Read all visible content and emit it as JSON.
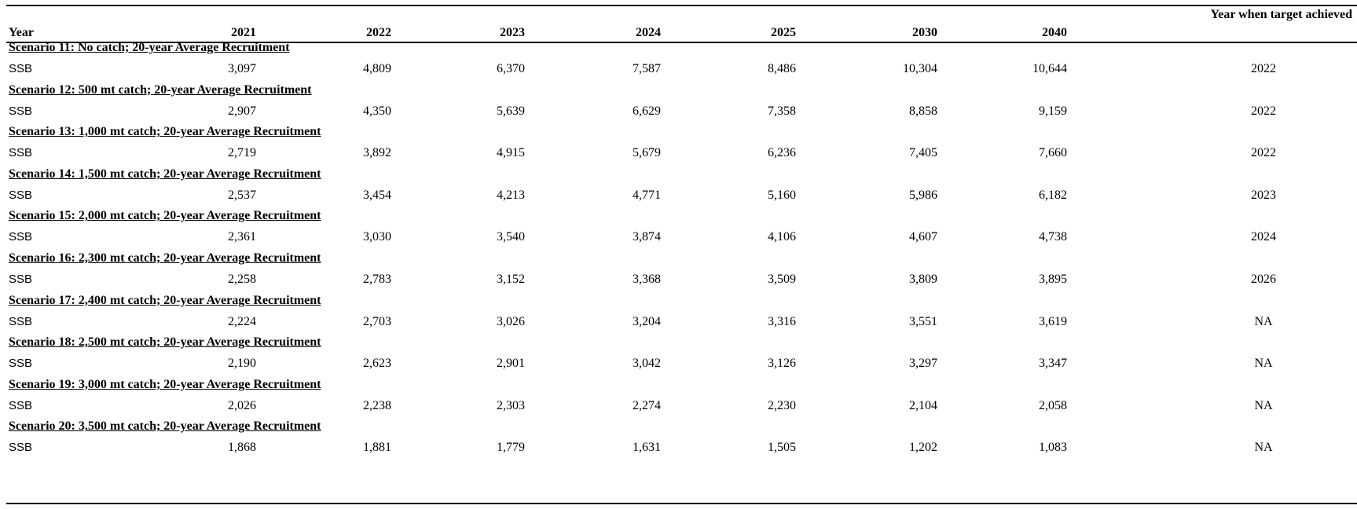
{
  "header": {
    "year_label": "Year",
    "years": [
      "2021",
      "2022",
      "2023",
      "2024",
      "2025",
      "2030",
      "2040"
    ],
    "target_label": "Year when target achieved"
  },
  "scenarios": [
    {
      "title": "Scenario 11: No catch; 20-year Average Recruitment",
      "row_label": "SSB",
      "values": [
        "3,097",
        "4,809",
        "6,370",
        "7,587",
        "8,486",
        "10,304",
        "10,644"
      ],
      "target": "2022"
    },
    {
      "title": "Scenario 12: 500 mt catch; 20-year Average Recruitment",
      "row_label": "SSB",
      "values": [
        "2,907",
        "4,350",
        "5,639",
        "6,629",
        "7,358",
        "8,858",
        "9,159"
      ],
      "target": "2022"
    },
    {
      "title": "Scenario 13: 1,000 mt catch; 20-year Average Recruitment",
      "row_label": "SSB",
      "values": [
        "2,719",
        "3,892",
        "4,915",
        "5,679",
        "6,236",
        "7,405",
        "7,660"
      ],
      "target": "2022"
    },
    {
      "title": "Scenario 14: 1,500 mt catch; 20-year Average Recruitment",
      "row_label": "SSB",
      "values": [
        "2,537",
        "3,454",
        "4,213",
        "4,771",
        "5,160",
        "5,986",
        "6,182"
      ],
      "target": "2023"
    },
    {
      "title": "Scenario 15: 2,000 mt catch; 20-year Average Recruitment",
      "row_label": "SSB",
      "values": [
        "2,361",
        "3,030",
        "3,540",
        "3,874",
        "4,106",
        "4,607",
        "4,738"
      ],
      "target": "2024"
    },
    {
      "title": "Scenario 16: 2,300 mt catch; 20-year Average Recruitment",
      "row_label": "SSB",
      "values": [
        "2,258",
        "2,783",
        "3,152",
        "3,368",
        "3,509",
        "3,809",
        "3,895"
      ],
      "target": "2026"
    },
    {
      "title": "Scenario 17: 2,400 mt catch; 20-year Average Recruitment",
      "row_label": "SSB",
      "values": [
        "2,224",
        "2,703",
        "3,026",
        "3,204",
        "3,316",
        "3,551",
        "3,619"
      ],
      "target": "NA"
    },
    {
      "title": "Scenario 18: 2,500 mt catch; 20-year Average Recruitment",
      "row_label": "SSB",
      "values": [
        "2,190",
        "2,623",
        "2,901",
        "3,042",
        "3,126",
        "3,297",
        "3,347"
      ],
      "target": "NA"
    },
    {
      "title": "Scenario 19: 3,000 mt catch; 20-year Average Recruitment",
      "row_label": "SSB",
      "values": [
        "2,026",
        "2,238",
        "2,303",
        "2,274",
        "2,230",
        "2,104",
        "2,058"
      ],
      "target": "NA"
    },
    {
      "title": "Scenario 20: 3,500 mt catch; 20-year Average Recruitment",
      "row_label": "SSB",
      "values": [
        "1,868",
        "1,881",
        "1,779",
        "1,631",
        "1,505",
        "1,202",
        "1,083"
      ],
      "target": "NA"
    }
  ]
}
